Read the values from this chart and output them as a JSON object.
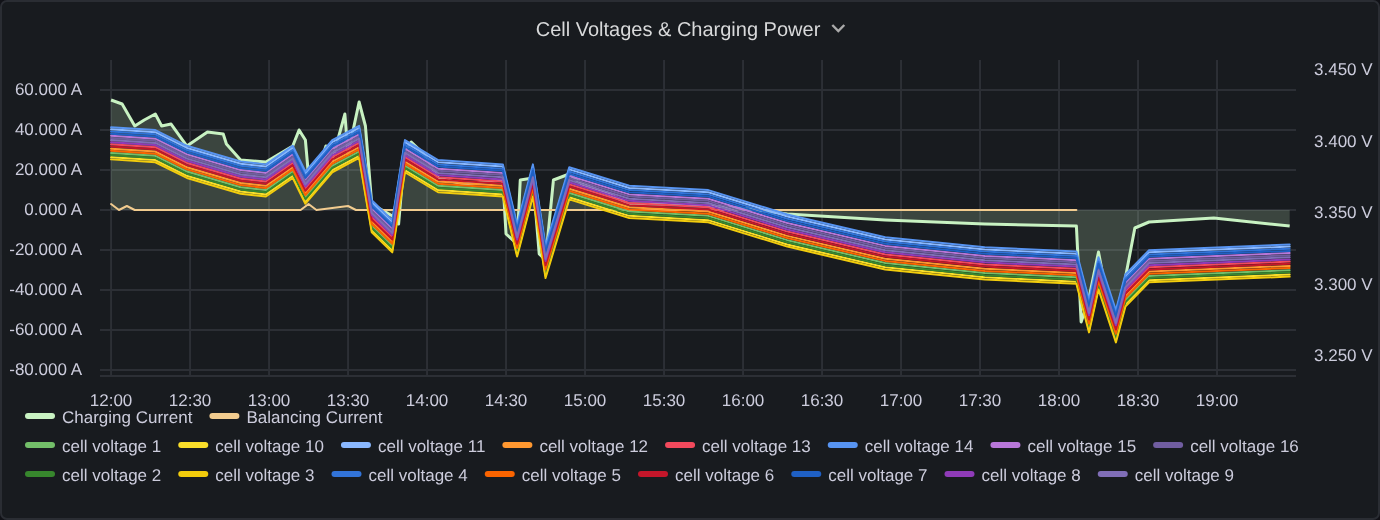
{
  "chart_data": {
    "type": "line",
    "title": "Cell Voltages & Charging Power",
    "x": [
      12.0,
      12.28,
      12.48,
      12.82,
      12.98,
      13.15,
      13.23,
      13.4,
      13.57,
      13.65,
      13.78,
      13.86,
      14.07,
      14.48,
      14.57,
      14.67,
      14.75,
      14.9,
      15.28,
      15.78,
      16.28,
      16.9,
      17.53,
      18.11,
      18.19,
      18.25,
      18.36,
      18.42,
      18.57,
      19.46
    ],
    "xlim": [
      11.93,
      19.5
    ],
    "xticks": [
      {
        "value": 12,
        "label": "12:00"
      },
      {
        "value": 12.5,
        "label": "12:30"
      },
      {
        "value": 13,
        "label": "13:00"
      },
      {
        "value": 13.5,
        "label": "13:30"
      },
      {
        "value": 14,
        "label": "14:00"
      },
      {
        "value": 14.5,
        "label": "14:30"
      },
      {
        "value": 15,
        "label": "15:00"
      },
      {
        "value": 15.5,
        "label": "15:30"
      },
      {
        "value": 16,
        "label": "16:00"
      },
      {
        "value": 16.5,
        "label": "16:30"
      },
      {
        "value": 17,
        "label": "17:00"
      },
      {
        "value": 17.5,
        "label": "17:30"
      },
      {
        "value": 18,
        "label": "18:00"
      },
      {
        "value": 18.5,
        "label": "18:30"
      },
      {
        "value": 19,
        "label": "19:00"
      }
    ],
    "ylim": [
      -83,
      75
    ],
    "yticks": [
      {
        "value": -80,
        "label": "-80.000 A"
      },
      {
        "value": -60,
        "label": "-60.000 A"
      },
      {
        "value": -40,
        "label": "-40.000 A"
      },
      {
        "value": -20,
        "label": "-20.000 A"
      },
      {
        "value": 0,
        "label": "0.000 A"
      },
      {
        "value": 20,
        "label": "20.000 A"
      },
      {
        "value": 40,
        "label": "40.000 A"
      },
      {
        "value": 60,
        "label": "60.000 A"
      }
    ],
    "y2lim": [
      3.236,
      3.457
    ],
    "y2ticks": [
      {
        "value": 3.25,
        "label": "3.250 V"
      },
      {
        "value": 3.3,
        "label": "3.300 V"
      },
      {
        "value": 3.35,
        "label": "3.350 V"
      },
      {
        "value": 3.4,
        "label": "3.400 V"
      },
      {
        "value": 3.45,
        "label": "3.450 V"
      }
    ],
    "grid": true,
    "legend": "bottom",
    "series": [
      {
        "name": "Charging Current",
        "type": "area",
        "color": "#c8f2c2",
        "x": [
          12.0,
          12.07,
          12.15,
          12.21,
          12.28,
          12.32,
          12.38,
          12.48,
          12.61,
          12.71,
          12.73,
          12.82,
          12.98,
          13.15,
          13.19,
          13.23,
          13.25,
          13.32,
          13.36,
          13.4,
          13.48,
          13.5,
          13.57,
          13.61,
          13.65,
          13.78,
          13.82,
          13.86,
          13.9,
          13.98,
          14.07,
          14.23,
          14.48,
          14.5,
          14.57,
          14.59,
          14.67,
          14.71,
          14.75,
          14.8,
          14.9,
          14.98,
          15.15,
          15.28,
          15.57,
          15.78,
          15.98,
          16.28,
          16.9,
          17.53,
          18.11,
          18.14,
          18.19,
          18.25,
          18.3,
          18.36,
          18.42,
          18.48,
          18.57,
          18.98,
          19.46
        ],
        "values": [
          55,
          53,
          42,
          45,
          48,
          42,
          43,
          32,
          39,
          38,
          33,
          25,
          24,
          32,
          40,
          35,
          17,
          22,
          32,
          25,
          48,
          28,
          54,
          42,
          3,
          -3,
          -7,
          30,
          34,
          28,
          16,
          13,
          15,
          -12,
          -17,
          15,
          16,
          -22,
          -25,
          15,
          18,
          13,
          8,
          3,
          3,
          2,
          1,
          -2,
          -5,
          -7,
          -8,
          -56,
          -44,
          -21,
          -42,
          -64,
          -34,
          -9,
          -6,
          -4,
          -8
        ]
      },
      {
        "name": "Balancing Current",
        "color": "#f2cc8f",
        "x": [
          12.0,
          12.05,
          12.1,
          12.15,
          13.2,
          13.25,
          13.3,
          13.5,
          13.55,
          13.6,
          18.11
        ],
        "values": [
          3,
          0,
          2,
          0,
          0,
          3,
          0,
          2,
          0,
          0,
          0
        ]
      },
      {
        "name": "cell voltage 1",
        "axis": "y2",
        "color": "#73bf69",
        "values": [
          3.392,
          3.39,
          3.379,
          3.368,
          3.366,
          3.379,
          3.361,
          3.383,
          3.393,
          3.341,
          3.327,
          3.383,
          3.369,
          3.366,
          3.324,
          3.366,
          3.309,
          3.364,
          3.351,
          3.348,
          3.331,
          3.315,
          3.308,
          3.305,
          3.271,
          3.301,
          3.264,
          3.289,
          3.306,
          3.31
        ]
      },
      {
        "name": "cell voltage 10",
        "axis": "y2",
        "color": "#fade2a",
        "values": [
          3.389,
          3.387,
          3.376,
          3.365,
          3.363,
          3.376,
          3.358,
          3.38,
          3.39,
          3.338,
          3.324,
          3.38,
          3.366,
          3.363,
          3.321,
          3.363,
          3.306,
          3.361,
          3.348,
          3.345,
          3.328,
          3.312,
          3.305,
          3.302,
          3.268,
          3.298,
          3.261,
          3.286,
          3.303,
          3.307
        ]
      },
      {
        "name": "cell voltage 11",
        "axis": "y2",
        "color": "#8ab8ff",
        "values": [
          3.4085,
          3.4065,
          3.3955,
          3.3845,
          3.3825,
          3.3955,
          3.3775,
          3.3995,
          3.4095,
          3.3575,
          3.3435,
          3.3995,
          3.3855,
          3.3825,
          3.3405,
          3.3825,
          3.3255,
          3.3805,
          3.3675,
          3.3645,
          3.3475,
          3.3315,
          3.3245,
          3.3215,
          3.2875,
          3.3175,
          3.2805,
          3.3055,
          3.3225,
          3.3265
        ]
      },
      {
        "name": "cell voltage 12",
        "axis": "y2",
        "color": "#ff9830",
        "values": [
          3.395,
          3.393,
          3.382,
          3.371,
          3.369,
          3.382,
          3.364,
          3.386,
          3.396,
          3.344,
          3.33,
          3.386,
          3.372,
          3.369,
          3.327,
          3.369,
          3.312,
          3.367,
          3.354,
          3.351,
          3.334,
          3.318,
          3.311,
          3.308,
          3.274,
          3.304,
          3.267,
          3.292,
          3.309,
          3.313
        ]
      },
      {
        "name": "cell voltage 13",
        "axis": "y2",
        "color": "#f2495c",
        "values": [
          3.398,
          3.396,
          3.385,
          3.374,
          3.372,
          3.385,
          3.367,
          3.389,
          3.399,
          3.347,
          3.333,
          3.389,
          3.375,
          3.372,
          3.33,
          3.372,
          3.315,
          3.37,
          3.357,
          3.354,
          3.337,
          3.321,
          3.314,
          3.311,
          3.277,
          3.307,
          3.27,
          3.295,
          3.312,
          3.316
        ]
      },
      {
        "name": "cell voltage 14",
        "axis": "y2",
        "color": "#5794f2",
        "values": [
          3.41,
          3.408,
          3.397,
          3.386,
          3.384,
          3.397,
          3.379,
          3.401,
          3.411,
          3.359,
          3.345,
          3.401,
          3.387,
          3.384,
          3.342,
          3.384,
          3.327,
          3.382,
          3.369,
          3.366,
          3.349,
          3.333,
          3.326,
          3.323,
          3.289,
          3.319,
          3.282,
          3.307,
          3.324,
          3.328
        ]
      },
      {
        "name": "cell voltage 15",
        "axis": "y2",
        "color": "#b877d9",
        "values": [
          3.404,
          3.402,
          3.391,
          3.38,
          3.378,
          3.391,
          3.373,
          3.395,
          3.405,
          3.353,
          3.339,
          3.395,
          3.381,
          3.378,
          3.336,
          3.378,
          3.321,
          3.376,
          3.363,
          3.36,
          3.343,
          3.327,
          3.32,
          3.317,
          3.283,
          3.313,
          3.276,
          3.301,
          3.318,
          3.322
        ]
      },
      {
        "name": "cell voltage 16",
        "axis": "y2",
        "color": "#705da0",
        "values": [
          3.4025,
          3.4005,
          3.3895,
          3.3785,
          3.3765,
          3.3895,
          3.3715,
          3.3935,
          3.4035,
          3.3515,
          3.3375,
          3.3935,
          3.3795,
          3.3765,
          3.3345,
          3.3765,
          3.3195,
          3.3745,
          3.3615,
          3.3585,
          3.3415,
          3.3255,
          3.3185,
          3.3155,
          3.2815,
          3.3115,
          3.2745,
          3.2995,
          3.3165,
          3.3205
        ]
      },
      {
        "name": "cell voltage 2",
        "axis": "y2",
        "color": "#37872d",
        "values": [
          3.3905,
          3.3885,
          3.3775,
          3.3665,
          3.3645,
          3.3775,
          3.3595,
          3.3815,
          3.3915,
          3.3395,
          3.3255,
          3.3815,
          3.3675,
          3.3645,
          3.3225,
          3.3645,
          3.3075,
          3.3625,
          3.3495,
          3.3465,
          3.3295,
          3.3135,
          3.3065,
          3.3035,
          3.2695,
          3.2995,
          3.2625,
          3.2875,
          3.3045,
          3.3085
        ]
      },
      {
        "name": "cell voltage 3",
        "axis": "y2",
        "color": "#f2cc0c",
        "values": [
          3.3875,
          3.3855,
          3.3745,
          3.3635,
          3.3615,
          3.3745,
          3.3565,
          3.3785,
          3.3885,
          3.3365,
          3.3225,
          3.3785,
          3.3645,
          3.3615,
          3.3195,
          3.3615,
          3.3045,
          3.3595,
          3.3465,
          3.3435,
          3.3265,
          3.3105,
          3.3035,
          3.3005,
          3.2665,
          3.2965,
          3.2595,
          3.2845,
          3.3015,
          3.3055
        ]
      },
      {
        "name": "cell voltage 4",
        "axis": "y2",
        "color": "#3274d9",
        "values": [
          3.407,
          3.405,
          3.394,
          3.383,
          3.381,
          3.394,
          3.376,
          3.398,
          3.408,
          3.356,
          3.342,
          3.398,
          3.384,
          3.381,
          3.339,
          3.381,
          3.324,
          3.379,
          3.366,
          3.363,
          3.346,
          3.33,
          3.323,
          3.32,
          3.286,
          3.316,
          3.279,
          3.304,
          3.321,
          3.325
        ]
      },
      {
        "name": "cell voltage 5",
        "axis": "y2",
        "color": "#fa6400",
        "values": [
          3.3935,
          3.3915,
          3.3805,
          3.3695,
          3.3675,
          3.3805,
          3.3625,
          3.3845,
          3.3945,
          3.3425,
          3.3285,
          3.3845,
          3.3705,
          3.3675,
          3.3255,
          3.3675,
          3.3105,
          3.3655,
          3.3525,
          3.3495,
          3.3325,
          3.3165,
          3.3095,
          3.3065,
          3.2725,
          3.3025,
          3.2655,
          3.2905,
          3.3075,
          3.3115
        ]
      },
      {
        "name": "cell voltage 6",
        "axis": "y2",
        "color": "#c4162a",
        "values": [
          3.3965,
          3.3945,
          3.3835,
          3.3725,
          3.3705,
          3.3835,
          3.3655,
          3.3875,
          3.3975,
          3.3455,
          3.3315,
          3.3875,
          3.3735,
          3.3705,
          3.3285,
          3.3705,
          3.3135,
          3.3685,
          3.3555,
          3.3525,
          3.3355,
          3.3195,
          3.3125,
          3.3095,
          3.2755,
          3.3055,
          3.2685,
          3.2935,
          3.3105,
          3.3145
        ]
      },
      {
        "name": "cell voltage 7",
        "axis": "y2",
        "color": "#1f60c4",
        "values": [
          3.4055,
          3.4035,
          3.3925,
          3.3815,
          3.3795,
          3.3925,
          3.3745,
          3.3965,
          3.4065,
          3.3545,
          3.3405,
          3.3965,
          3.3825,
          3.3795,
          3.3375,
          3.3795,
          3.3225,
          3.3775,
          3.3645,
          3.3615,
          3.3445,
          3.3285,
          3.3215,
          3.3185,
          3.2845,
          3.3145,
          3.2775,
          3.3025,
          3.3195,
          3.3235
        ]
      },
      {
        "name": "cell voltage 8",
        "axis": "y2",
        "color": "#8f3bb8",
        "values": [
          3.3995,
          3.3975,
          3.3865,
          3.3755,
          3.3735,
          3.3865,
          3.3685,
          3.3905,
          3.4005,
          3.3485,
          3.3345,
          3.3905,
          3.3765,
          3.3735,
          3.3315,
          3.3735,
          3.3165,
          3.3715,
          3.3585,
          3.3555,
          3.3385,
          3.3225,
          3.3155,
          3.3125,
          3.2785,
          3.3085,
          3.2715,
          3.2965,
          3.3135,
          3.3175
        ]
      },
      {
        "name": "cell voltage 9",
        "axis": "y2",
        "color": "#806eb7",
        "values": [
          3.401,
          3.399,
          3.388,
          3.377,
          3.375,
          3.388,
          3.37,
          3.392,
          3.402,
          3.35,
          3.336,
          3.392,
          3.378,
          3.375,
          3.333,
          3.375,
          3.318,
          3.373,
          3.36,
          3.357,
          3.34,
          3.324,
          3.317,
          3.314,
          3.28,
          3.31,
          3.273,
          3.298,
          3.315,
          3.319
        ]
      }
    ]
  }
}
